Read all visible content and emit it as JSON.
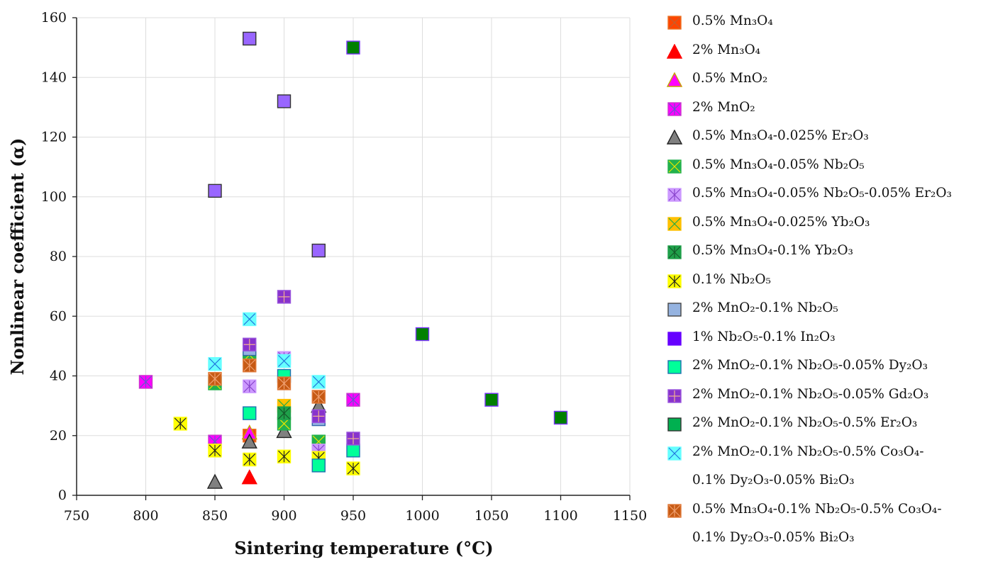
{
  "chart_data": {
    "type": "scatter",
    "title": "",
    "xlabel": "Sintering temperature (°C)",
    "ylabel": "Nonlinear coefficient (α)",
    "xlim": [
      750,
      1150
    ],
    "ylim": [
      0,
      160
    ],
    "xticks": [
      750,
      800,
      850,
      900,
      950,
      1000,
      1050,
      1100,
      1150
    ],
    "yticks": [
      0,
      20,
      40,
      60,
      80,
      100,
      120,
      140,
      160
    ],
    "grid": true,
    "legend_position": "right",
    "series": [
      {
        "name": "0.5% Mn₃O₄",
        "marker": "square-x",
        "fill": "#ff4400",
        "stroke": "#f07020",
        "inner": "#c06030",
        "points": [
          [
            875,
            20
          ]
        ]
      },
      {
        "name": "2% Mn₃O₄",
        "marker": "triangle",
        "fill": "#ff0000",
        "stroke": "#ff0000",
        "inner": "",
        "points": [
          [
            875,
            6
          ]
        ]
      },
      {
        "name": "0.5% MnO₂",
        "marker": "triangle",
        "fill": "#ff00ff",
        "stroke": "#c8a000",
        "inner": "",
        "points": [
          [
            875,
            21
          ]
        ]
      },
      {
        "name": "2% MnO₂",
        "marker": "square-asterisk",
        "fill": "#ff00ff",
        "stroke": "#cc33cc",
        "inner": "#6655cc",
        "points": [
          [
            800,
            38
          ],
          [
            850,
            18
          ],
          [
            950,
            32
          ]
        ]
      },
      {
        "name": "0.5% Mn₃O₄-0.025% Er₂O₃",
        "marker": "triangle",
        "fill": "#808080",
        "stroke": "#222222",
        "inner": "",
        "points": [
          [
            850,
            4.5
          ],
          [
            875,
            18
          ],
          [
            900,
            21.5
          ],
          [
            925,
            30
          ]
        ]
      },
      {
        "name": "0.5% Mn₃O₄-0.05% Nb₂O₅",
        "marker": "square-x",
        "fill": "#22b14c",
        "stroke": "#22b14c",
        "inner": "#e6e600",
        "points": [
          [
            850,
            37.5
          ],
          [
            875,
            47
          ],
          [
            900,
            24
          ],
          [
            925,
            18
          ]
        ]
      },
      {
        "name": "0.5% Mn₃O₄-0.05% Nb₂O₅-0.05% Er₂O₃",
        "marker": "square-asterisk",
        "fill": "#cc99ff",
        "stroke": "#cc99ff",
        "inner": "#8844cc",
        "points": [
          [
            875,
            36.5
          ],
          [
            900,
            46
          ],
          [
            925,
            15
          ]
        ]
      },
      {
        "name": "0.5% Mn₃O₄-0.025% Yb₂O₃",
        "marker": "square-x",
        "fill": "#ffc000",
        "stroke": "#ffc000",
        "inner": "#22aa44",
        "points": [
          [
            900,
            30
          ],
          [
            925,
            12.5
          ]
        ]
      },
      {
        "name": "0.5% Mn₃O₄-0.1% Yb₂O₃",
        "marker": "square-asterisk",
        "fill": "#1fa04a",
        "stroke": "#1fa04a",
        "inner": "#145a2a",
        "points": [
          [
            900,
            27.5
          ]
        ]
      },
      {
        "name": "0.1% Nb₂O₅",
        "marker": "square-asterisk",
        "fill": "#ffff00",
        "stroke": "#ffff00",
        "inner": "#222222",
        "points": [
          [
            825,
            24
          ],
          [
            850,
            15
          ],
          [
            875,
            12
          ],
          [
            900,
            13
          ],
          [
            925,
            12.5
          ],
          [
            950,
            9
          ]
        ]
      },
      {
        "name": "2% MnO₂-0.1% Nb₂O₅",
        "marker": "square",
        "fill": "#95b3e0",
        "stroke": "#3366aa",
        "inner": "",
        "points": [
          [
            875,
            49
          ],
          [
            925,
            25.5
          ]
        ]
      },
      {
        "name": "1% Nb₂O₅-0.1% In₂O₃",
        "marker": "square",
        "fill": "#9966ff",
        "stroke": "#333333",
        "inner": "",
        "points": [
          [
            850,
            102
          ],
          [
            875,
            153
          ],
          [
            900,
            132
          ],
          [
            925,
            82
          ]
        ]
      },
      {
        "name": "2% MnO₂-0.1% Nb₂O₅-0.05% Dy₂O₃",
        "marker": "square",
        "fill": "#00ff99",
        "stroke": "#1f6fb0",
        "inner": "",
        "points": [
          [
            875,
            27.5
          ],
          [
            900,
            40
          ],
          [
            925,
            10
          ],
          [
            950,
            15
          ]
        ]
      },
      {
        "name": "2% MnO₂-0.1% Nb₂O₅-0.05% Gd₂O₃",
        "marker": "square-cross",
        "fill": "#8833cc",
        "stroke": "#9955dd",
        "inner": "#f0b090",
        "points": [
          [
            875,
            50.5
          ],
          [
            900,
            66.5
          ],
          [
            925,
            26.5
          ],
          [
            950,
            19
          ]
        ]
      },
      {
        "name": "2% MnO₂-0.1% Nb₂O₅-0.5% Er₂O₃",
        "marker": "square",
        "fill": "#008000",
        "stroke": "#7a33ff",
        "inner": "",
        "points": [
          [
            950,
            150
          ],
          [
            1000,
            54
          ],
          [
            1050,
            32
          ],
          [
            1100,
            26
          ]
        ]
      },
      {
        "name": "2% MnO₂-0.1% Nb₂O₅-0.5% Co₃O₄-\n0.1% Dy₂O₃-0.05% Bi₂O₃",
        "marker": "square-x",
        "fill": "#66ffff",
        "stroke": "#66ffff",
        "inner": "#2277dd",
        "points": [
          [
            850,
            44
          ],
          [
            875,
            59
          ],
          [
            900,
            45
          ],
          [
            925,
            38
          ]
        ]
      },
      {
        "name": "0.5% Mn₃O₄-0.1% Nb₂O₅-0.5% Co₃O₄-\n0.1% Dy₂O₃-0.05% Bi₂O₃",
        "marker": "square-asterisk",
        "fill": "#c65a14",
        "stroke": "#e07a3a",
        "inner": "#f0a070",
        "points": [
          [
            850,
            39
          ],
          [
            875,
            43.5
          ],
          [
            900,
            37.5
          ],
          [
            925,
            33
          ]
        ]
      }
    ]
  },
  "legend": {
    "items": [
      {
        "label": "0.5% Mn₃O₄"
      },
      {
        "label": "2% Mn₃O₄"
      },
      {
        "label": "0.5% MnO₂"
      },
      {
        "label": "2% MnO₂"
      },
      {
        "label": "0.5% Mn₃O₄-0.025% Er₂O₃"
      },
      {
        "label": "0.5% Mn₃O₄-0.05% Nb₂O₅"
      },
      {
        "label": "0.5% Mn₃O₄-0.05% Nb₂O₅-0.05% Er₂O₃"
      },
      {
        "label": "0.5% Mn₃O₄-0.025% Yb₂O₃"
      },
      {
        "label": "0.5% Mn₃O₄-0.1% Yb₂O₃"
      },
      {
        "label": "0.1% Nb₂O₅"
      },
      {
        "label": "2% MnO₂-0.1% Nb₂O₅"
      },
      {
        "label": "1% Nb₂O₅-0.1% In₂O₃"
      },
      {
        "label": "2% MnO₂-0.1% Nb₂O₅-0.05% Dy₂O₃"
      },
      {
        "label": "2% MnO₂-0.1% Nb₂O₅-0.05% Gd₂O₃"
      },
      {
        "label": "2% MnO₂-0.1% Nb₂O₅-0.5% Er₂O₃"
      },
      {
        "label": "2% MnO₂-0.1% Nb₂O₅-0.5% Co₃O₄-\n0.1% Dy₂O₃-0.05% Bi₂O₃"
      },
      {
        "label": "0.5% Mn₃O₄-0.1% Nb₂O₅-0.5% Co₃O₄-\n0.1% Dy₂O₃-0.05% Bi₂O₃"
      }
    ],
    "legend_swatch_overrides": {
      "11": {
        "fill": "#6600ff",
        "stroke": "#6600ff"
      },
      "14": {
        "fill": "#00b050",
        "stroke": "#333333"
      },
      "10": {
        "fill": "#95b3e0",
        "stroke": "#444444"
      }
    }
  }
}
